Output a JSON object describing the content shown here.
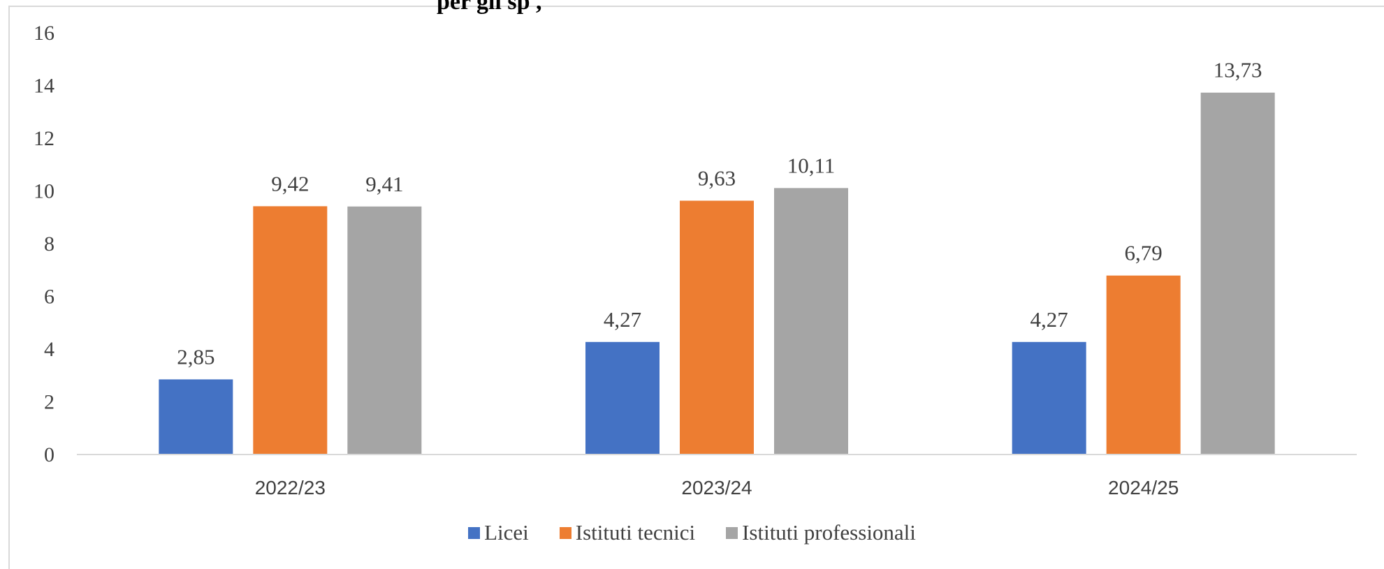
{
  "title_fragment": "per gli  sp          ,",
  "colors": {
    "licei": "#4472C4",
    "tecnici": "#ED7D31",
    "professionali": "#A5A5A5",
    "axis": "#d9d9d9"
  },
  "chart_data": {
    "type": "bar",
    "categories": [
      "2022/23",
      "2023/24",
      "2024/25"
    ],
    "series": [
      {
        "name": "Licei",
        "values": [
          2.85,
          4.27,
          4.27
        ],
        "labels": [
          "2,85",
          "4,27",
          "4,27"
        ]
      },
      {
        "name": "Istituti tecnici",
        "values": [
          9.42,
          9.63,
          6.79
        ],
        "labels": [
          "9,42",
          "9,63",
          "6,79"
        ]
      },
      {
        "name": "Istituti professionali",
        "values": [
          9.41,
          10.11,
          13.73
        ],
        "labels": [
          "9,41",
          "10,11",
          "13,73"
        ]
      }
    ],
    "ylim": [
      0,
      16
    ],
    "yticks": [
      0,
      2,
      4,
      6,
      8,
      10,
      12,
      14,
      16
    ],
    "grid": false,
    "legend": "bottom"
  }
}
